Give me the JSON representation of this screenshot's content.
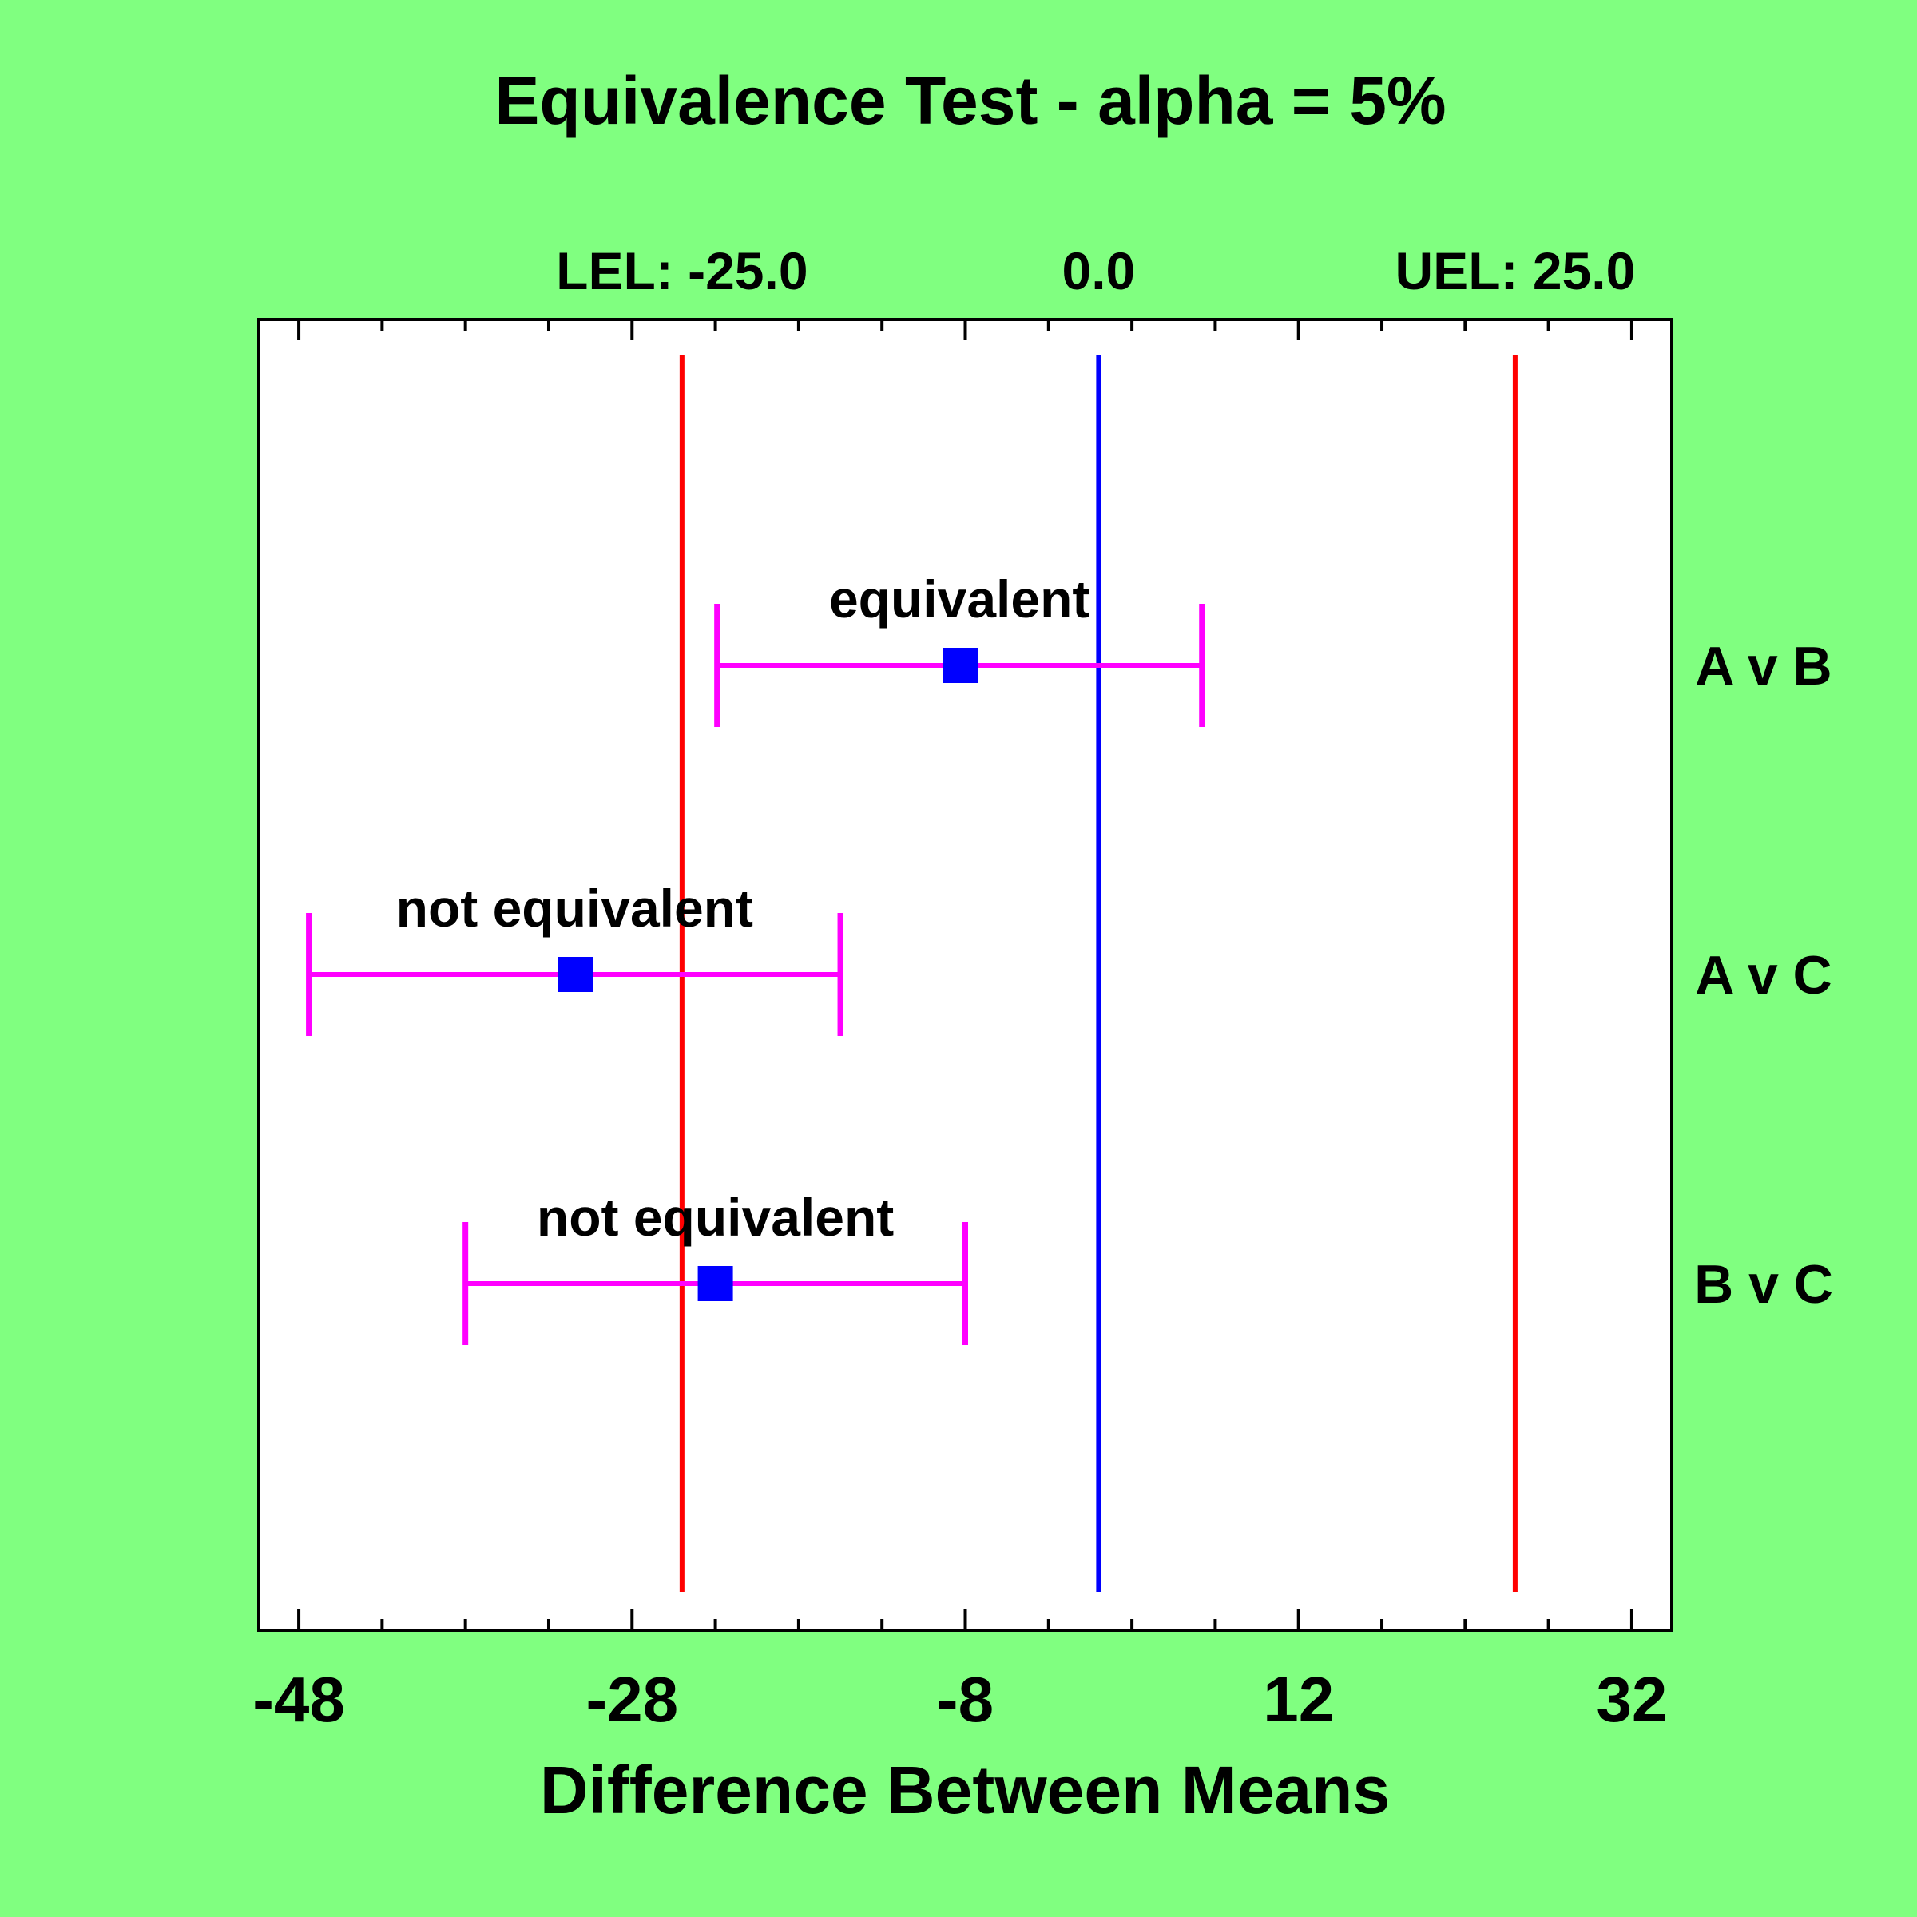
{
  "colors": {
    "background": "#80FF80",
    "plot_background": "#FFFFFF",
    "limit_line": "#FF0000",
    "zero_line": "#0000FF",
    "interval": "#FF00FF",
    "estimate_marker": "#0000FF",
    "text": "#000000"
  },
  "chart_data": {
    "type": "interval",
    "title": "Equivalence Test - alpha = 5%",
    "xlabel": "Difference Between Means",
    "ylabel": "",
    "xlim": [
      -50.4,
      34.4
    ],
    "x_ticks": [
      -48,
      -28,
      -8,
      12,
      32
    ],
    "x_minor_ticks": [
      -48,
      -43,
      -38,
      -33,
      -28,
      -23,
      -18,
      -13,
      -8,
      -3,
      2,
      7,
      12,
      17,
      22,
      27,
      32
    ],
    "grid": false,
    "reference_lines": [
      {
        "label": "LEL: -25.0",
        "value": -25.0,
        "role": "lower-limit"
      },
      {
        "label": "0.0",
        "value": 0.0,
        "role": "zero"
      },
      {
        "label": "UEL: 25.0",
        "value": 25.0,
        "role": "upper-limit"
      }
    ],
    "comparisons": [
      {
        "name": "A v B",
        "estimate": -8.3,
        "lower": -22.9,
        "upper": 6.2,
        "result": "equivalent"
      },
      {
        "name": "A v C",
        "estimate": -31.4,
        "lower": -47.4,
        "upper": -15.5,
        "result": "not equivalent"
      },
      {
        "name": "B v C",
        "estimate": -23.0,
        "lower": -38.0,
        "upper": -8.0,
        "result": "not equivalent"
      }
    ]
  }
}
